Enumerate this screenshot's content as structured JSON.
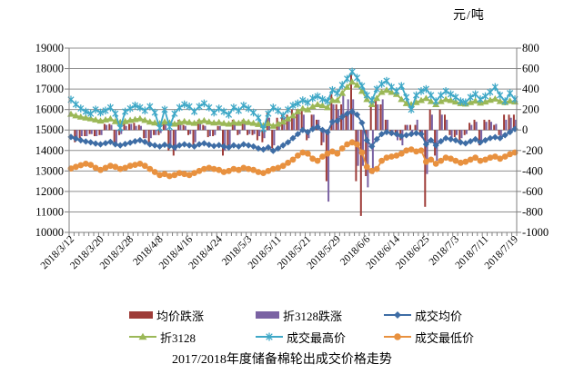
{
  "title": "2017/2018年度储备棉轮出成交价格走势",
  "unit_label": "元/吨",
  "chart_data": {
    "type": "combo-bar-line",
    "title": "2017/2018年度储备棉轮出成交价格走势",
    "unit": "元/吨",
    "n_points": 91,
    "x_label_every": 6,
    "x_tick_labels": [
      "2018/3/12",
      "2018/3/20",
      "2018/3/28",
      "2018/4/8",
      "2018/4/16",
      "2018/4/24",
      "2018/5/3",
      "2018/5/11",
      "2018/5/21",
      "2018/5/29",
      "2018/6/6",
      "2018/6/14",
      "2018/6/25",
      "2018/7/3",
      "2018/7/11",
      "2018/7/19"
    ],
    "left_axis": {
      "min": 10000,
      "max": 19000,
      "step": 1000
    },
    "right_axis": {
      "min": -1000,
      "max": 800,
      "step": 200
    },
    "grid_color": "#8f8f8f",
    "axis_color": "#808080",
    "legend_rows": [
      [
        0,
        1,
        2
      ],
      [
        3,
        4,
        5
      ]
    ],
    "series": [
      {
        "name": "均价跌涨",
        "key": "avg-price-change-bars",
        "type": "bar",
        "axis": "right",
        "color": "#9e3c38",
        "values": [
          0,
          -120,
          -80,
          -60,
          -40,
          -60,
          -50,
          60,
          60,
          -120,
          -50,
          70,
          60,
          70,
          50,
          -80,
          -120,
          -50,
          -50,
          80,
          -200,
          -250,
          100,
          50,
          -50,
          -150,
          100,
          50,
          -70,
          -60,
          40,
          -250,
          -180,
          100,
          -50,
          100,
          -50,
          -50,
          -100,
          -120,
          170,
          -180,
          120,
          150,
          150,
          200,
          200,
          200,
          -100,
          150,
          100,
          -150,
          -500,
          350,
          250,
          250,
          150,
          550,
          -500,
          -840,
          -450,
          250,
          300,
          250,
          100,
          -50,
          -50,
          -100,
          50,
          50,
          50,
          -50,
          -750,
          200,
          -250,
          200,
          150,
          -50,
          -70,
          -100,
          -50,
          70,
          100,
          -150,
          100,
          100,
          50,
          -50,
          150,
          150,
          150
        ]
      },
      {
        "name": "折3128跌涨",
        "key": "z3128-change-bars",
        "type": "bar",
        "axis": "right",
        "color": "#7a62a3",
        "values": [
          0,
          -80,
          -60,
          -60,
          -40,
          -60,
          -50,
          50,
          50,
          -130,
          -40,
          40,
          60,
          40,
          40,
          -80,
          -80,
          -50,
          -30,
          80,
          -150,
          -200,
          80,
          40,
          -40,
          -120,
          80,
          40,
          -60,
          -50,
          40,
          -200,
          -150,
          80,
          -40,
          80,
          -40,
          -40,
          -60,
          -80,
          120,
          -150,
          80,
          120,
          120,
          150,
          200,
          150,
          -80,
          150,
          100,
          -120,
          -700,
          250,
          200,
          350,
          300,
          300,
          -350,
          -350,
          -560,
          -430,
          250,
          300,
          100,
          -50,
          -100,
          -150,
          50,
          -50,
          100,
          -80,
          -430,
          150,
          -300,
          150,
          100,
          -80,
          -50,
          -80,
          -40,
          50,
          80,
          -120,
          80,
          80,
          60,
          -80,
          100,
          120,
          100
        ]
      },
      {
        "name": "成交均价",
        "key": "avg-price-line",
        "type": "line",
        "marker": "diamond",
        "axis": "left",
        "color": "#3e6da5",
        "values": [
          14660,
          14580,
          14500,
          14440,
          14400,
          14340,
          14300,
          14360,
          14420,
          14300,
          14250,
          14320,
          14380,
          14450,
          14500,
          14420,
          14300,
          14250,
          14200,
          14280,
          14220,
          14150,
          14250,
          14300,
          14250,
          14200,
          14300,
          14350,
          14280,
          14220,
          14260,
          14200,
          14150,
          14250,
          14200,
          14300,
          14250,
          14200,
          14100,
          14050,
          14150,
          13980,
          14100,
          14250,
          14400,
          14600,
          14800,
          15000,
          14900,
          15050,
          15150,
          15000,
          14900,
          15400,
          15450,
          15650,
          15800,
          15900,
          15750,
          15350,
          14500,
          14200,
          14550,
          14800,
          14900,
          14850,
          14800,
          14700,
          14750,
          14800,
          14850,
          14800,
          14300,
          14500,
          14250,
          14450,
          14600,
          14550,
          14500,
          14400,
          14350,
          14450,
          14550,
          14400,
          14500,
          14600,
          14650,
          14600,
          14750,
          14900,
          15050
        ]
      },
      {
        "name": "折3128",
        "key": "z3128-line",
        "type": "line",
        "marker": "triangle",
        "axis": "left",
        "color": "#9bb857",
        "values": [
          15780,
          15700,
          15640,
          15600,
          15560,
          15500,
          15450,
          15500,
          15550,
          15420,
          15380,
          15420,
          15480,
          15520,
          15560,
          15480,
          15400,
          15350,
          15320,
          15400,
          15350,
          15300,
          15380,
          15420,
          15380,
          15340,
          15420,
          15460,
          15400,
          15350,
          15380,
          15330,
          15300,
          15380,
          15340,
          15420,
          15380,
          15340,
          15280,
          15220,
          15320,
          15200,
          15300,
          15400,
          15550,
          15700,
          15900,
          16050,
          16000,
          16150,
          16250,
          16200,
          16100,
          16450,
          16450,
          16800,
          17100,
          17350,
          17200,
          16900,
          16500,
          16250,
          16550,
          16850,
          16950,
          16850,
          16750,
          16500,
          16300,
          16250,
          16350,
          16450,
          16550,
          16400,
          16250,
          16400,
          16500,
          16450,
          16380,
          16300,
          16280,
          16350,
          16420,
          16320,
          16380,
          16460,
          16520,
          16400,
          16350,
          16420,
          16380
        ]
      },
      {
        "name": "成交最高价",
        "key": "high-price-line",
        "type": "line",
        "marker": "asterisk",
        "axis": "left",
        "color": "#3fa8c7",
        "values": [
          16480,
          16250,
          16050,
          15900,
          15800,
          16000,
          15850,
          15950,
          16100,
          15800,
          15100,
          15900,
          16050,
          16200,
          16100,
          15950,
          16150,
          15850,
          15100,
          16000,
          15150,
          15800,
          16100,
          16250,
          16150,
          15900,
          16150,
          16300,
          16100,
          15850,
          16050,
          15900,
          15750,
          16100,
          15950,
          16200,
          16050,
          15850,
          15600,
          15050,
          15800,
          16100,
          15950,
          15700,
          16000,
          16200,
          16300,
          16450,
          16350,
          16550,
          16650,
          16500,
          16400,
          16950,
          16800,
          17200,
          17500,
          17850,
          17550,
          17150,
          16700,
          16450,
          17000,
          17250,
          17400,
          17100,
          16900,
          17150,
          16600,
          16000,
          16700,
          16900,
          17000,
          16700,
          16400,
          16700,
          16900,
          16750,
          16600,
          16400,
          16350,
          16600,
          16750,
          16500,
          16650,
          16850,
          17100,
          16700,
          16400,
          16800,
          16500
        ]
      },
      {
        "name": "成交最低价",
        "key": "low-price-line",
        "type": "line",
        "marker": "circle",
        "axis": "left",
        "color": "#e8913f",
        "values": [
          13120,
          13200,
          13280,
          13350,
          13300,
          13150,
          13050,
          13150,
          13250,
          13200,
          13100,
          13150,
          13250,
          13300,
          13350,
          13250,
          13100,
          12950,
          12800,
          12850,
          12750,
          12800,
          12900,
          12850,
          12800,
          12900,
          13000,
          13100,
          13150,
          13100,
          13050,
          12950,
          13000,
          13100,
          13050,
          13150,
          13100,
          13050,
          12950,
          12900,
          13000,
          13100,
          13150,
          13250,
          13400,
          13550,
          13750,
          13900,
          13850,
          13600,
          13500,
          13700,
          13850,
          13950,
          13850,
          14100,
          14300,
          14400,
          14300,
          13900,
          13200,
          13000,
          13100,
          13500,
          13650,
          13700,
          13750,
          13850,
          14000,
          14050,
          13950,
          14000,
          13450,
          13550,
          13350,
          13500,
          13650,
          13600,
          13500,
          13400,
          13450,
          13550,
          13650,
          13500,
          13550,
          13650,
          13700,
          13600,
          13700,
          13820,
          13900
        ]
      }
    ]
  }
}
